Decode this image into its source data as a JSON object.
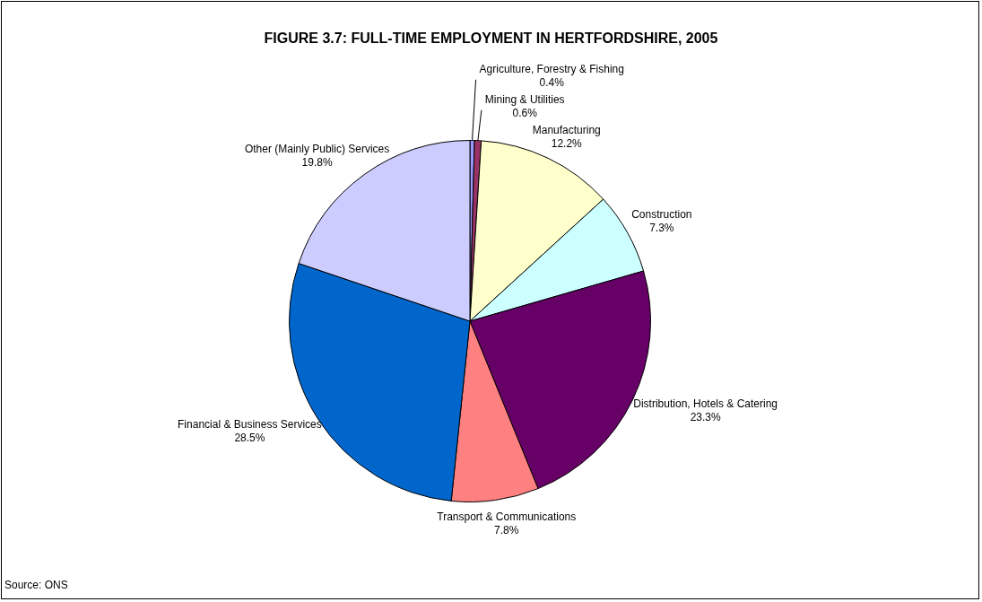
{
  "chart_data": {
    "type": "pie",
    "title": "FIGURE 3.7: FULL-TIME EMPLOYMENT IN HERTFORDSHIRE, 2005",
    "categories": [
      "Agriculture, Forestry & Fishing",
      "Mining & Utilities",
      "Manufacturing",
      "Construction",
      "Distribution, Hotels & Catering",
      "Transport & Communications",
      "Financial & Business Services",
      "Other (Mainly Public) Services"
    ],
    "values": [
      0.4,
      0.6,
      12.2,
      7.3,
      23.3,
      7.8,
      28.5,
      19.8
    ],
    "colors": [
      "#9999ff",
      "#993366",
      "#ffffcc",
      "#ccffff",
      "#660066",
      "#ff8080",
      "#0066cc",
      "#ccccff"
    ],
    "value_labels": [
      "0.4%",
      "0.6%",
      "12.2%",
      "7.3%",
      "23.3%",
      "7.8%",
      "28.5%",
      "19.8%"
    ],
    "legend": false,
    "annotations": [
      "Source: ONS"
    ]
  }
}
